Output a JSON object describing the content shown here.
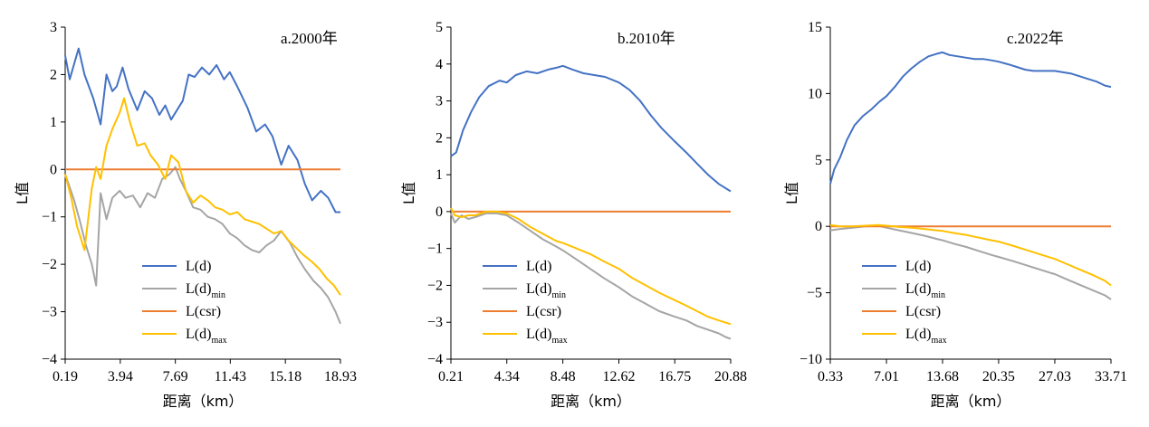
{
  "chart_data": [
    {
      "type": "line",
      "title": "a.2000年",
      "xlabel": "距离（km）",
      "ylabel": "L值",
      "x_ticks": [
        "0.19",
        "3.94",
        "7.69",
        "11.43",
        "15.18",
        "18.93"
      ],
      "ylim": [
        -4,
        3
      ],
      "y_ticks": [
        "3",
        "2",
        "1",
        "0",
        "−1",
        "−2",
        "−3",
        "−4"
      ],
      "grid": false,
      "legend_position": "bottom-middle",
      "colors": {
        "L": "#4472c4",
        "Lmin": "#a5a5a5",
        "Lcsr": "#ed7d31",
        "Lmax": "#ffc000"
      },
      "legend": [
        {
          "key": "L",
          "label": "L(d)"
        },
        {
          "key": "Lmin",
          "label": "L(d)",
          "subscript": "min"
        },
        {
          "key": "Lcsr",
          "label": "L(csr)"
        },
        {
          "key": "Lmax",
          "label": "L(d)",
          "subscript": "max"
        }
      ],
      "series": [
        {
          "key": "L",
          "x": [
            0.19,
            0.5,
            1.1,
            1.5,
            2.1,
            2.6,
            3.0,
            3.4,
            3.7,
            4.1,
            4.5,
            5.1,
            5.6,
            6.1,
            6.6,
            7.0,
            7.4,
            7.8,
            8.2,
            8.6,
            9.0,
            9.5,
            10.0,
            10.5,
            11.0,
            11.4,
            11.9,
            12.6,
            13.2,
            13.8,
            14.3,
            14.9,
            15.4,
            16.0,
            16.5,
            17.0,
            17.6,
            18.1,
            18.6,
            18.93
          ],
          "y": [
            2.4,
            1.9,
            2.55,
            2.0,
            1.5,
            0.95,
            2.0,
            1.65,
            1.75,
            2.15,
            1.7,
            1.25,
            1.65,
            1.5,
            1.15,
            1.35,
            1.05,
            1.25,
            1.45,
            2.0,
            1.95,
            2.15,
            2.0,
            2.2,
            1.9,
            2.05,
            1.75,
            1.3,
            0.8,
            0.95,
            0.7,
            0.1,
            0.5,
            0.2,
            -0.3,
            -0.65,
            -0.45,
            -0.6,
            -0.9,
            -0.9
          ]
        },
        {
          "key": "Lmin",
          "x": [
            0.19,
            0.8,
            1.2,
            1.6,
            2.0,
            2.3,
            2.6,
            3.0,
            3.4,
            3.9,
            4.3,
            4.8,
            5.3,
            5.8,
            6.3,
            6.8,
            7.3,
            7.69,
            8.0,
            8.4,
            8.9,
            9.4,
            9.9,
            10.4,
            10.9,
            11.4,
            11.9,
            12.4,
            12.9,
            13.4,
            13.9,
            14.4,
            14.9,
            15.5,
            16.0,
            16.5,
            17.1,
            17.6,
            18.1,
            18.6,
            18.93
          ],
          "y": [
            -0.1,
            -0.65,
            -1.1,
            -1.6,
            -2.0,
            -2.45,
            -0.5,
            -1.05,
            -0.6,
            -0.45,
            -0.6,
            -0.55,
            -0.8,
            -0.5,
            -0.6,
            -0.2,
            -0.1,
            0.05,
            -0.2,
            -0.45,
            -0.8,
            -0.85,
            -1.0,
            -1.05,
            -1.15,
            -1.35,
            -1.45,
            -1.6,
            -1.7,
            -1.75,
            -1.6,
            -1.5,
            -1.3,
            -1.55,
            -1.85,
            -2.1,
            -2.35,
            -2.5,
            -2.7,
            -3.0,
            -3.25
          ]
        },
        {
          "key": "Lcsr",
          "x": [
            0.19,
            18.93
          ],
          "y": [
            0,
            0
          ]
        },
        {
          "key": "Lmax",
          "x": [
            0.19,
            0.6,
            1.0,
            1.5,
            2.0,
            2.3,
            2.6,
            3.0,
            3.4,
            3.9,
            4.2,
            4.6,
            5.1,
            5.6,
            6.0,
            6.5,
            7.0,
            7.4,
            7.9,
            8.4,
            8.9,
            9.4,
            9.9,
            10.4,
            10.9,
            11.4,
            11.9,
            12.4,
            12.9,
            13.4,
            13.9,
            14.4,
            14.9,
            15.4,
            15.9,
            16.4,
            17.0,
            17.5,
            18.0,
            18.5,
            18.93
          ],
          "y": [
            -0.1,
            -0.6,
            -1.2,
            -1.7,
            -0.4,
            0.05,
            -0.2,
            0.5,
            0.85,
            1.2,
            1.5,
            1.0,
            0.5,
            0.55,
            0.3,
            0.1,
            -0.2,
            0.3,
            0.15,
            -0.45,
            -0.7,
            -0.55,
            -0.65,
            -0.8,
            -0.85,
            -0.95,
            -0.9,
            -1.05,
            -1.1,
            -1.15,
            -1.25,
            -1.35,
            -1.3,
            -1.5,
            -1.65,
            -1.8,
            -1.95,
            -2.1,
            -2.3,
            -2.45,
            -2.65
          ]
        }
      ]
    },
    {
      "type": "line",
      "title": "b.2010年",
      "xlabel": "距离（km）",
      "ylabel": "L值",
      "x_ticks": [
        "0.21",
        "4.34",
        "8.48",
        "12.62",
        "16.75",
        "20.88"
      ],
      "ylim": [
        -4,
        5
      ],
      "y_ticks": [
        "5",
        "4",
        "3",
        "2",
        "1",
        "0",
        "−1",
        "−2",
        "−3",
        "−4"
      ],
      "grid": false,
      "legend_position": "bottom-middle",
      "colors": {
        "L": "#4472c4",
        "Lmin": "#a5a5a5",
        "Lcsr": "#ed7d31",
        "Lmax": "#ffc000"
      },
      "legend": [
        {
          "key": "L",
          "label": "L(d)"
        },
        {
          "key": "Lmin",
          "label": "L(d)",
          "subscript": "min"
        },
        {
          "key": "Lcsr",
          "label": "L(csr)"
        },
        {
          "key": "Lmax",
          "label": "L(d)",
          "subscript": "max"
        }
      ],
      "series": [
        {
          "key": "L",
          "x": [
            0.21,
            0.6,
            1.1,
            1.7,
            2.3,
            3.0,
            3.8,
            4.34,
            5.0,
            5.8,
            6.6,
            7.4,
            8.0,
            8.48,
            9.2,
            10.0,
            10.8,
            11.6,
            12.62,
            13.4,
            14.2,
            15.0,
            15.8,
            16.75,
            17.6,
            18.4,
            19.2,
            20.0,
            20.88
          ],
          "y": [
            1.5,
            1.6,
            2.2,
            2.7,
            3.1,
            3.4,
            3.55,
            3.5,
            3.7,
            3.8,
            3.75,
            3.85,
            3.9,
            3.95,
            3.85,
            3.75,
            3.7,
            3.65,
            3.5,
            3.3,
            3.0,
            2.6,
            2.25,
            1.9,
            1.6,
            1.3,
            1.0,
            0.75,
            0.55
          ]
        },
        {
          "key": "Lmin",
          "x": [
            0.21,
            0.5,
            1.0,
            1.5,
            2.0,
            2.8,
            3.6,
            4.34,
            5.2,
            6.0,
            7.0,
            8.0,
            8.48,
            9.5,
            10.5,
            11.5,
            12.62,
            13.6,
            14.6,
            15.6,
            16.75,
            17.6,
            18.4,
            19.2,
            20.0,
            20.5,
            20.88
          ],
          "y": [
            -0.05,
            -0.3,
            -0.1,
            -0.2,
            -0.15,
            -0.05,
            -0.05,
            -0.1,
            -0.3,
            -0.5,
            -0.75,
            -0.95,
            -1.05,
            -1.3,
            -1.55,
            -1.8,
            -2.05,
            -2.3,
            -2.5,
            -2.7,
            -2.85,
            -2.95,
            -3.1,
            -3.2,
            -3.3,
            -3.4,
            -3.45
          ]
        },
        {
          "key": "Lcsr",
          "x": [
            0.21,
            20.88
          ],
          "y": [
            0,
            0
          ]
        },
        {
          "key": "Lmax",
          "x": [
            0.21,
            0.5,
            1.0,
            1.5,
            2.0,
            2.8,
            3.6,
            4.34,
            5.2,
            6.0,
            7.0,
            8.0,
            8.48,
            9.5,
            10.5,
            11.5,
            12.62,
            13.6,
            14.6,
            15.6,
            16.75,
            17.6,
            18.4,
            19.2,
            20.0,
            20.88
          ],
          "y": [
            0.1,
            -0.1,
            -0.15,
            -0.1,
            -0.1,
            0.0,
            0.0,
            -0.05,
            -0.2,
            -0.4,
            -0.6,
            -0.8,
            -0.85,
            -1.0,
            -1.15,
            -1.35,
            -1.55,
            -1.8,
            -2.0,
            -2.2,
            -2.4,
            -2.55,
            -2.7,
            -2.85,
            -2.95,
            -3.05
          ]
        }
      ]
    },
    {
      "type": "line",
      "title": "c.2022年",
      "xlabel": "距离（km）",
      "ylabel": "L值",
      "x_ticks": [
        "0.33",
        "7.01",
        "13.68",
        "20.35",
        "27.03",
        "33.71"
      ],
      "ylim": [
        -10,
        15
      ],
      "y_ticks": [
        "15",
        "10",
        "5",
        "0",
        "−5",
        "−10"
      ],
      "grid": false,
      "legend_position": "bottom-middle",
      "colors": {
        "L": "#4472c4",
        "Lmin": "#a5a5a5",
        "Lcsr": "#ed7d31",
        "Lmax": "#ffc000"
      },
      "legend": [
        {
          "key": "L",
          "label": "L(d)"
        },
        {
          "key": "Lmin",
          "label": "L(d)",
          "subscript": "min"
        },
        {
          "key": "Lcsr",
          "label": "L(csr)"
        },
        {
          "key": "Lmax",
          "label": "L(d)",
          "subscript": "max"
        }
      ],
      "series": [
        {
          "key": "L",
          "x": [
            0.33,
            0.8,
            1.5,
            2.3,
            3.2,
            4.2,
            5.2,
            6.2,
            7.01,
            8.0,
            9.0,
            10.0,
            11.0,
            12.0,
            13.0,
            13.68,
            14.5,
            15.5,
            16.5,
            17.5,
            18.5,
            19.5,
            20.35,
            21.5,
            22.5,
            23.5,
            24.5,
            25.5,
            26.5,
            27.03,
            28.0,
            29.0,
            30.0,
            31.0,
            32.0,
            33.0,
            33.71
          ],
          "y": [
            3.2,
            4.3,
            5.2,
            6.5,
            7.6,
            8.3,
            8.8,
            9.4,
            9.8,
            10.5,
            11.3,
            11.9,
            12.4,
            12.8,
            13.0,
            13.1,
            12.9,
            12.8,
            12.7,
            12.6,
            12.6,
            12.5,
            12.4,
            12.2,
            12.0,
            11.8,
            11.7,
            11.7,
            11.7,
            11.7,
            11.6,
            11.5,
            11.3,
            11.1,
            10.9,
            10.6,
            10.5
          ]
        },
        {
          "key": "Lmin",
          "x": [
            0.33,
            1.5,
            3.0,
            4.5,
            6.0,
            7.01,
            8.5,
            10.0,
            11.5,
            13.0,
            13.68,
            15.0,
            16.5,
            18.0,
            19.5,
            20.35,
            22.0,
            23.5,
            25.0,
            26.5,
            27.03,
            28.5,
            30.0,
            31.5,
            33.0,
            33.71
          ],
          "y": [
            -0.3,
            -0.2,
            -0.1,
            0.0,
            0.05,
            -0.1,
            -0.3,
            -0.5,
            -0.7,
            -0.95,
            -1.05,
            -1.3,
            -1.55,
            -1.85,
            -2.15,
            -2.3,
            -2.6,
            -2.9,
            -3.2,
            -3.5,
            -3.6,
            -4.0,
            -4.4,
            -4.8,
            -5.2,
            -5.5
          ]
        },
        {
          "key": "Lcsr",
          "x": [
            0.33,
            33.71
          ],
          "y": [
            0,
            0
          ]
        },
        {
          "key": "Lmax",
          "x": [
            0.33,
            1.5,
            3.0,
            4.5,
            6.0,
            7.01,
            8.5,
            10.0,
            11.5,
            13.0,
            13.68,
            15.0,
            16.5,
            18.0,
            19.5,
            20.35,
            22.0,
            23.5,
            25.0,
            26.5,
            27.03,
            28.5,
            30.0,
            31.5,
            33.0,
            33.71
          ],
          "y": [
            0.1,
            0.0,
            0.0,
            0.05,
            0.1,
            0.05,
            -0.05,
            -0.1,
            -0.2,
            -0.3,
            -0.35,
            -0.5,
            -0.65,
            -0.85,
            -1.05,
            -1.15,
            -1.45,
            -1.75,
            -2.05,
            -2.35,
            -2.45,
            -2.85,
            -3.25,
            -3.65,
            -4.1,
            -4.45
          ]
        }
      ]
    }
  ]
}
